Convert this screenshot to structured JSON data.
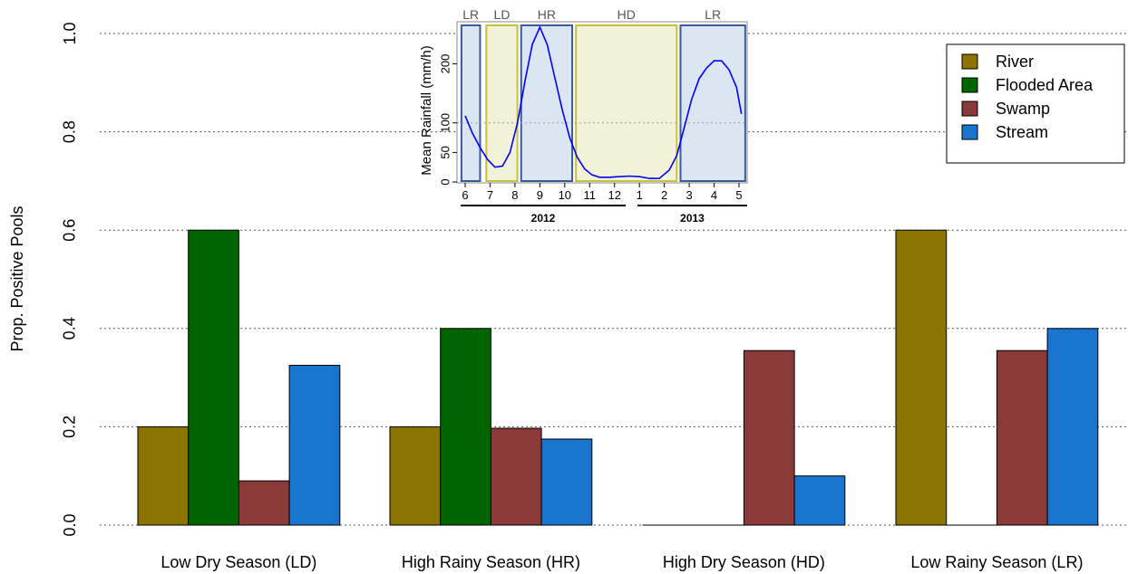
{
  "chart_data": [
    {
      "type": "bar",
      "ylabel": "Prop. Positive Pools",
      "xlabel": "",
      "ylim": [
        0,
        1.0
      ],
      "yticks": [
        "0.0",
        "0.2",
        "0.4",
        "0.6",
        "0.8",
        "1.0"
      ],
      "grid": "horizontal dotted",
      "legend_position": "top-right",
      "categories": [
        "Low Dry Season (LD)",
        "High Rainy Season (HR)",
        "High Dry Season (HD)",
        "Low Rainy Season (LR)"
      ],
      "series": [
        {
          "name": "River",
          "color": "#8b7500",
          "values": [
            0.2,
            0.2,
            0.0,
            0.6
          ]
        },
        {
          "name": "Flooded Area",
          "color": "#006400",
          "values": [
            0.6,
            0.4,
            0.0,
            0.0
          ]
        },
        {
          "name": "Swamp",
          "color": "#8b3a3a",
          "values": [
            0.09,
            0.197,
            0.355,
            0.355
          ]
        },
        {
          "name": "Stream",
          "color": "#1874cd",
          "values": [
            0.325,
            0.175,
            0.1,
            0.4
          ]
        }
      ]
    },
    {
      "type": "line",
      "ylabel": "Mean Rainfall (mm/h)",
      "yticks": [
        "0",
        "50",
        "100",
        "200"
      ],
      "xticks": [
        "6",
        "7",
        "8",
        "9",
        "10",
        "11",
        "12",
        "1",
        "2",
        "3",
        "4",
        "5"
      ],
      "years": [
        "2012",
        "2013"
      ],
      "line_color": "#0000ff",
      "seasons": [
        {
          "label": "LR",
          "type": "rainy",
          "from": 5.85,
          "to": 6.6
        },
        {
          "label": "LD",
          "type": "dry",
          "from": 6.85,
          "to": 8.1
        },
        {
          "label": "HR",
          "type": "rainy",
          "from": 8.25,
          "to": 10.3
        },
        {
          "label": "HD",
          "type": "dry",
          "from": 10.45,
          "to": 14.5
        },
        {
          "label": "LR",
          "type": "rainy",
          "from": 14.65,
          "to": 17.25
        }
      ],
      "x": [
        6,
        6.3,
        6.6,
        6.9,
        7.2,
        7.5,
        7.8,
        8.1,
        8.4,
        8.7,
        9,
        9.3,
        9.6,
        9.9,
        10.2,
        10.5,
        10.8,
        11.1,
        11.4,
        11.8,
        12.2,
        12.6,
        13,
        13.4,
        13.8,
        14.2,
        14.5,
        14.8,
        15.1,
        15.4,
        15.7,
        16,
        16.3,
        16.6,
        16.9,
        17.1
      ],
      "y": [
        112,
        82,
        58,
        38,
        25,
        27,
        50,
        100,
        170,
        233,
        262,
        232,
        177,
        122,
        75,
        42,
        22,
        12,
        8,
        8,
        9,
        10,
        9,
        6,
        6,
        20,
        45,
        92,
        140,
        175,
        193,
        205,
        205,
        190,
        160,
        115
      ]
    }
  ]
}
